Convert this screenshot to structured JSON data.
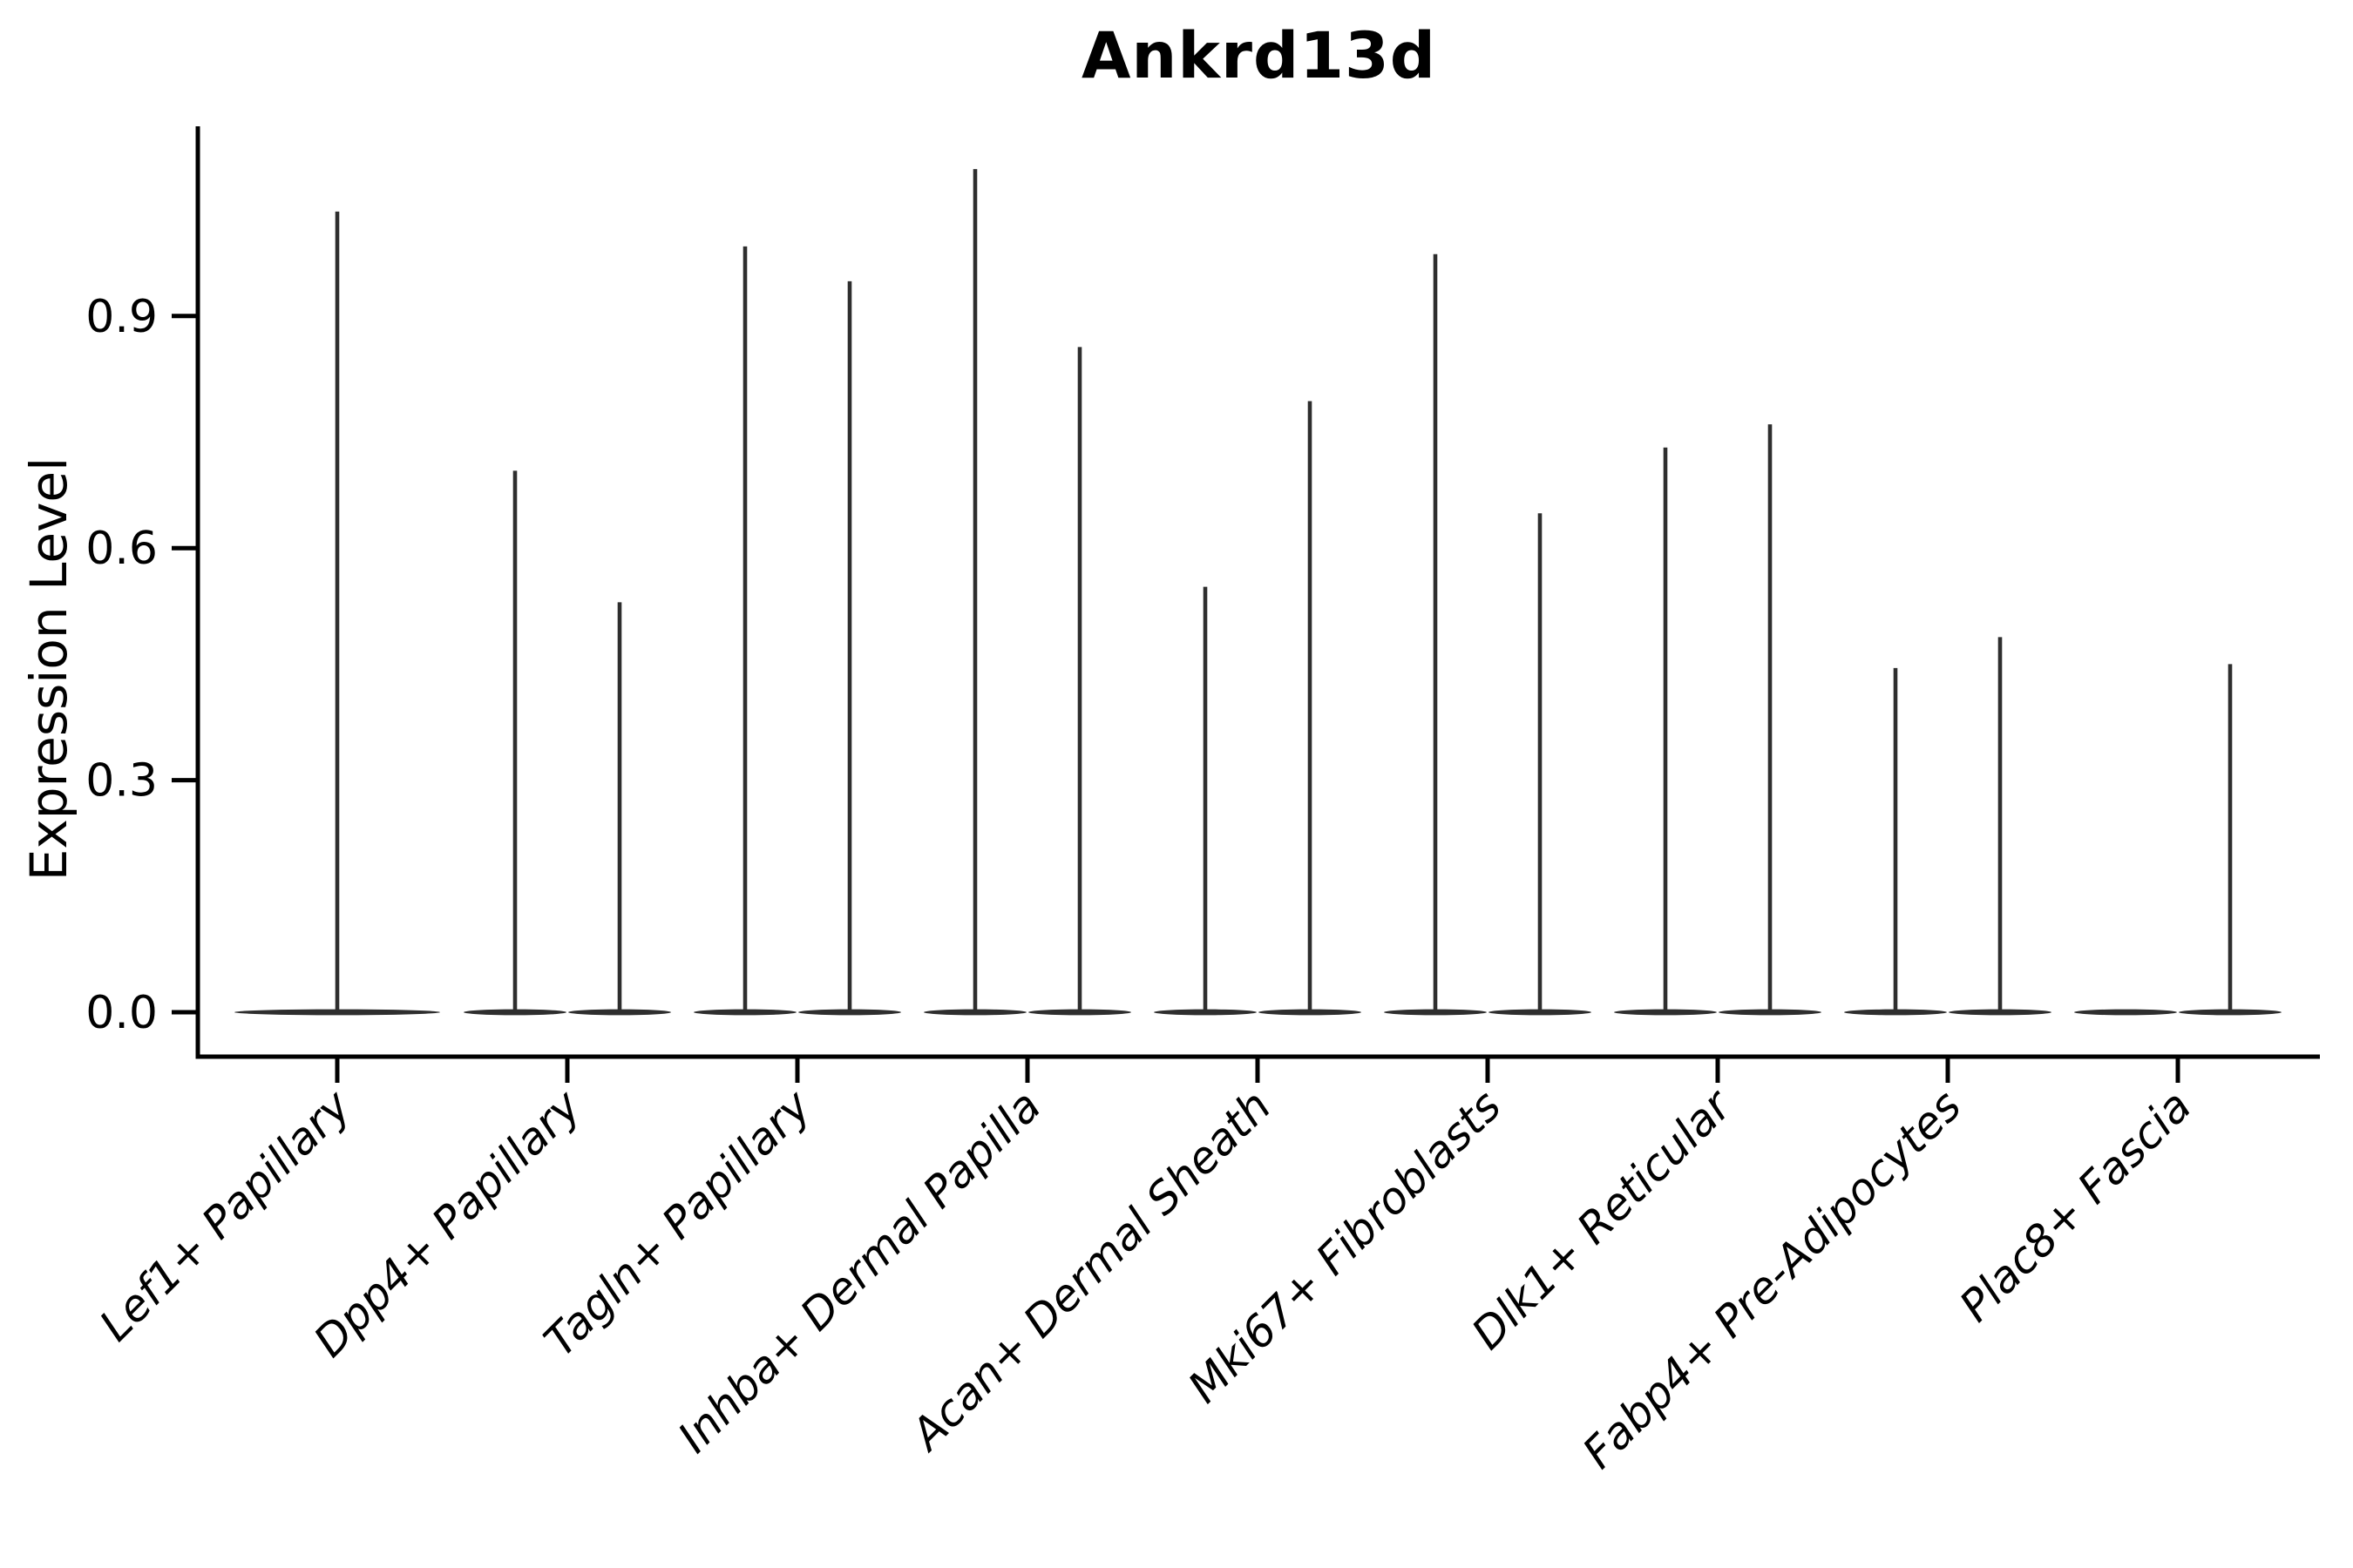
{
  "chart_data": {
    "type": "violin",
    "title": "Ankrd13d",
    "ylabel": "Expression Level",
    "yticks": [
      "0.0",
      "0.3",
      "0.6",
      "0.9"
    ],
    "ytick_values": [
      0.0,
      0.3,
      0.6,
      0.9
    ],
    "ylim": [
      0.0,
      1.145
    ],
    "grid": false,
    "legend": "none",
    "x_axis_label_style": "rotated-45-italic",
    "categories": [
      "Lef1+ Papillary",
      "Dpp4+ Papillary",
      "Tagln+ Papillary",
      "Inhba+ Dermal Papilla",
      "Acan+ Dermal Sheath",
      "Mki67+ Fibroblasts",
      "Dlk1+ Reticular",
      "Fabp4+ Pre-Adipocytes",
      "Plac8+ Fascia"
    ],
    "violins": [
      {
        "category": "Lef1+ Papillary",
        "layout": "single",
        "group_maxima": [
          1.035
        ]
      },
      {
        "category": "Dpp4+ Papillary",
        "layout": "pair",
        "group_maxima": [
          0.7,
          0.53
        ]
      },
      {
        "category": "Tagln+ Papillary",
        "layout": "pair",
        "group_maxima": [
          0.99,
          0.945
        ]
      },
      {
        "category": "Inhba+ Dermal Papilla",
        "layout": "pair",
        "group_maxima": [
          1.09,
          0.86
        ]
      },
      {
        "category": "Acan+ Dermal Sheath",
        "layout": "pair",
        "group_maxima": [
          0.55,
          0.79
        ]
      },
      {
        "category": "Mki67+ Fibroblasts",
        "layout": "pair",
        "group_maxima": [
          0.98,
          0.645
        ]
      },
      {
        "category": "Dlk1+ Reticular",
        "layout": "pair",
        "group_maxima": [
          0.73,
          0.76
        ]
      },
      {
        "category": "Fabp4+ Pre-Adipocytes",
        "layout": "pair",
        "group_maxima": [
          0.445,
          0.485
        ]
      },
      {
        "category": "Plac8+ Fascia",
        "layout": "pair",
        "group_maxima": [
          0.0,
          0.45
        ]
      }
    ],
    "colors": {
      "violin": "#2e2e2e",
      "axis": "#000000",
      "text": "#000000",
      "background": "#ffffff"
    }
  }
}
